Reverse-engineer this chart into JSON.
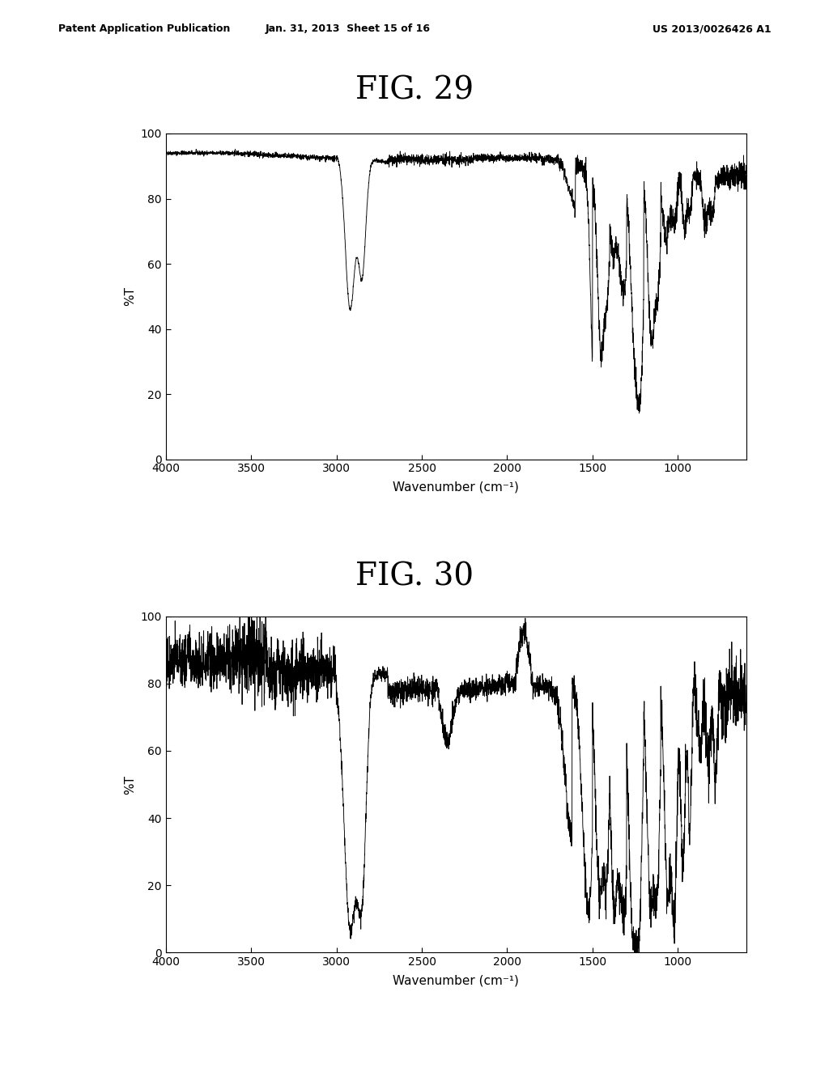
{
  "fig29_title": "FIG. 29",
  "fig30_title": "FIG. 30",
  "xlabel": "Wavenumber (cm⁻¹)",
  "ylabel": "%T",
  "xlim": [
    4000,
    600
  ],
  "ylim": [
    0,
    100
  ],
  "yticks": [
    0,
    20,
    40,
    60,
    80,
    100
  ],
  "xticks": [
    4000,
    3500,
    3000,
    2500,
    2000,
    1500,
    1000
  ],
  "header_left": "Patent Application Publication",
  "header_center": "Jan. 31, 2013  Sheet 15 of 16",
  "header_right": "US 2013/0026426 A1",
  "background_color": "#ffffff",
  "line_color": "#000000",
  "title_fontsize": 28,
  "header_fontsize": 9,
  "axis_fontsize": 10,
  "label_fontsize": 11
}
